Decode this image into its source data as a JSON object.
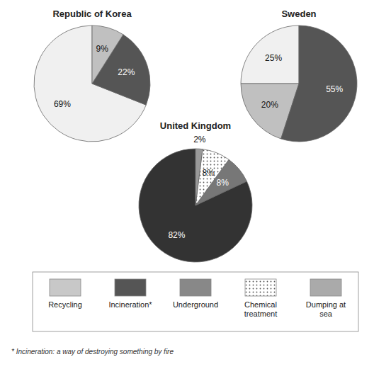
{
  "chart_data": [
    {
      "type": "pie",
      "title": "Republic of Korea",
      "values": [
        69,
        22,
        9
      ],
      "value_labels": [
        "69%",
        "22%",
        "9%"
      ],
      "colors": [
        "#f0f0f0",
        "#555555",
        "#c0c0c0"
      ],
      "data_labels": true
    },
    {
      "type": "pie",
      "title": "Sweden",
      "values": [
        25,
        20,
        55
      ],
      "value_labels": [
        "25%",
        "20%",
        "55%"
      ],
      "colors": [
        "#f0f0f0",
        "#c0c0c0",
        "#555555"
      ],
      "data_labels": true
    },
    {
      "type": "pie",
      "title": "United Kingdom",
      "values": [
        82,
        8,
        8,
        2
      ],
      "value_labels": [
        "82%",
        "8%",
        "8%",
        "2%"
      ],
      "colors": [
        "#333333",
        "#777777",
        "#ffffff",
        "#999999"
      ],
      "data_labels": true
    },
    {
      "type": "legend",
      "categories": [
        "Recycling",
        "Incineration*",
        "Underground",
        "Chemical\ntreatment",
        "Dumping at\nsea"
      ],
      "colors": [
        "#c8c8c8",
        "#555555",
        "#888888",
        "#ffffff",
        "#aaaaaa"
      ],
      "annotations": [
        "* Incineration: a way of destroying something by fire"
      ]
    }
  ]
}
